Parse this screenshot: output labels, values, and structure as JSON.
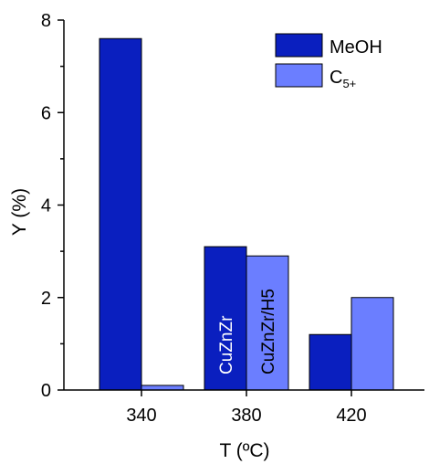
{
  "chart_data": {
    "type": "bar",
    "xlabel": "T (ºC)",
    "ylabel": "Y (%)",
    "categories": [
      "340",
      "380",
      "420"
    ],
    "ylim": [
      0,
      8
    ],
    "yticks": [
      "0",
      "2",
      "4",
      "6",
      "8"
    ],
    "grid": false,
    "legend_position": "top-right",
    "series": [
      {
        "name": "MeOH",
        "values": [
          7.6,
          3.1,
          1.2
        ],
        "color": "#0a1fbf"
      },
      {
        "name": "C5+",
        "name_base": "C",
        "name_sub": "5+",
        "values": [
          0.1,
          2.9,
          2.0
        ],
        "color": "#6b7eff"
      }
    ],
    "annotations": [
      {
        "text": "CuZnZr",
        "category": "380",
        "series": 0
      },
      {
        "text": "CuZnZr/H5",
        "category": "380",
        "series": 1
      }
    ]
  }
}
